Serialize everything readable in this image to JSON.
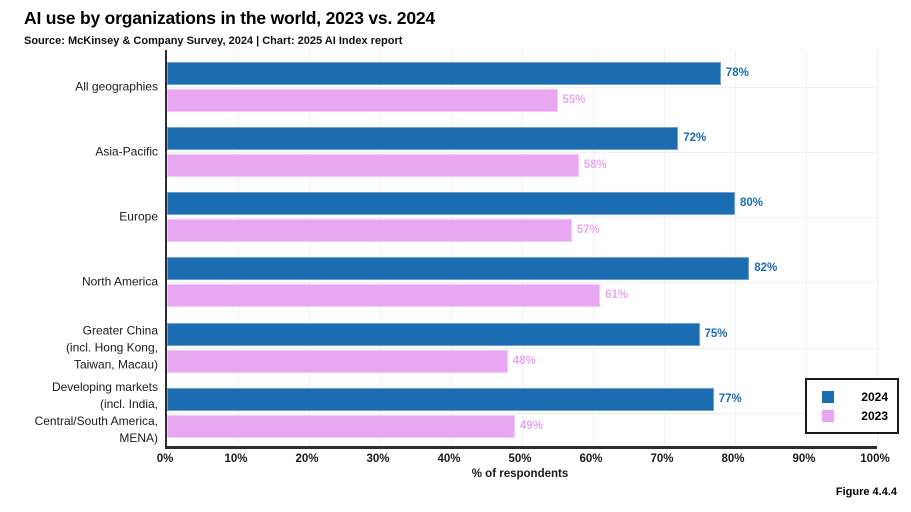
{
  "title": "AI use by organizations in the world, 2023 vs. 2024",
  "subtitle": "Source: McKinsey & Company Survey, 2024 | Chart: 2025 AI Index report",
  "figure_caption": "Figure 4.4.4",
  "colors": {
    "series_2024": "#1b6cb1",
    "series_2023": "#e9a7f2",
    "axis": "#2d2d2d",
    "grid": "#edf0f5"
  },
  "chart_data": {
    "type": "bar",
    "orientation": "horizontal",
    "title": "AI use by organizations in the world, 2023 vs. 2024",
    "xlabel": "% of respondents",
    "xlim": [
      0,
      100
    ],
    "xticks": [
      "0%",
      "10%",
      "20%",
      "30%",
      "40%",
      "50%",
      "60%",
      "70%",
      "80%",
      "90%",
      "100%"
    ],
    "grid": true,
    "legend_position": "bottom-right",
    "value_suffix": "%",
    "categories": [
      [
        "All geographies"
      ],
      [
        "Asia-Pacific"
      ],
      [
        "Europe"
      ],
      [
        "North America"
      ],
      [
        "Greater China",
        "(incl. Hong Kong,",
        "Taiwan, Macau)"
      ],
      [
        "Developing markets",
        "(incl. India,",
        "Central/South America,",
        "MENA)"
      ]
    ],
    "series": [
      {
        "name": "2024",
        "color": "#1b6cb1",
        "values": [
          78,
          72,
          80,
          82,
          75,
          77
        ]
      },
      {
        "name": "2023",
        "color": "#e9a7f2",
        "values": [
          55,
          58,
          57,
          61,
          48,
          49
        ]
      }
    ]
  }
}
